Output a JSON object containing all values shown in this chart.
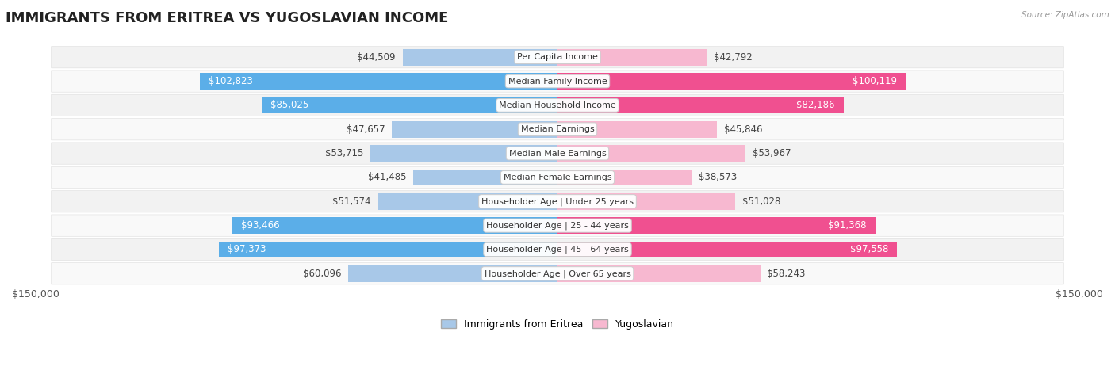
{
  "title": "IMMIGRANTS FROM ERITREA VS YUGOSLAVIAN INCOME",
  "source": "Source: ZipAtlas.com",
  "categories": [
    "Per Capita Income",
    "Median Family Income",
    "Median Household Income",
    "Median Earnings",
    "Median Male Earnings",
    "Median Female Earnings",
    "Householder Age | Under 25 years",
    "Householder Age | 25 - 44 years",
    "Householder Age | 45 - 64 years",
    "Householder Age | Over 65 years"
  ],
  "eritrea_values": [
    44509,
    102823,
    85025,
    47657,
    53715,
    41485,
    51574,
    93466,
    97373,
    60096
  ],
  "yugoslavian_values": [
    42792,
    100119,
    82186,
    45846,
    53967,
    38573,
    51028,
    91368,
    97558,
    58243
  ],
  "eritrea_color_light": "#a8c8e8",
  "eritrea_color_dark": "#5baee8",
  "yugoslavian_color_light": "#f7b8d0",
  "yugoslavian_color_dark": "#f05090",
  "eritrea_label": "Immigrants from Eritrea",
  "yugoslavian_label": "Yugoslavian",
  "max_value": 150000,
  "label_fontsize": 8.5,
  "title_fontsize": 13,
  "background_color": "#ffffff",
  "row_bg_odd": "#f2f2f2",
  "row_bg_even": "#f9f9f9",
  "axis_label": "$150,000",
  "dark_threshold": 80000
}
